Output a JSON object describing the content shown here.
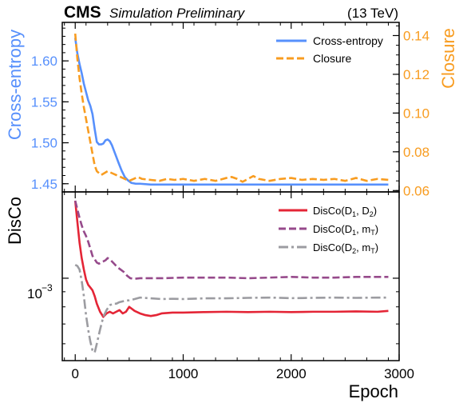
{
  "header": {
    "experiment": "CMS",
    "status": "Simulation Preliminary",
    "energy": "(13 TeV)"
  },
  "colors": {
    "cross_entropy": "#5790fc",
    "closure": "#f89c20",
    "disco_d1_d2": "#e42536",
    "disco_d1_mt": "#964a8b",
    "disco_d2_mt": "#9c9ca1",
    "axis": "#000000"
  },
  "chart_data": [
    {
      "panel": "top",
      "type": "line",
      "xlim": [
        -120,
        3000
      ],
      "xlabel": "",
      "ylabel_left": "Cross-entropy",
      "ylabel_right": "Closure",
      "ylim_left": [
        1.44,
        1.647
      ],
      "ylim_right": [
        0.0593,
        0.1468
      ],
      "yticks_left": [
        "1.45",
        "1.50",
        "1.55",
        "1.60"
      ],
      "yticks_left_values": [
        1.45,
        1.5,
        1.55,
        1.6
      ],
      "yticks_right": [
        "0.06",
        "0.08",
        "0.10",
        "0.12",
        "0.14"
      ],
      "yticks_right_values": [
        0.06,
        0.08,
        0.1,
        0.12,
        0.14
      ],
      "legend_position": "top-right",
      "series": [
        {
          "name": "Cross-entropy",
          "axis": "left",
          "style": "solid",
          "color_key": "cross_entropy",
          "x": [
            0,
            20,
            40,
            60,
            80,
            100,
            120,
            140,
            160,
            180,
            200,
            220,
            240,
            260,
            280,
            300,
            320,
            340,
            360,
            380,
            400,
            430,
            460,
            490,
            520,
            560,
            600,
            700,
            800,
            1000,
            1200,
            1400,
            1600,
            1800,
            2000,
            2200,
            2400,
            2600,
            2800,
            2900
          ],
          "y": [
            1.628,
            1.609,
            1.596,
            1.585,
            1.572,
            1.562,
            1.552,
            1.545,
            1.535,
            1.517,
            1.501,
            1.498,
            1.498,
            1.499,
            1.503,
            1.504,
            1.502,
            1.497,
            1.49,
            1.483,
            1.476,
            1.466,
            1.458,
            1.454,
            1.451,
            1.45,
            1.45,
            1.449,
            1.449,
            1.449,
            1.449,
            1.449,
            1.449,
            1.449,
            1.449,
            1.449,
            1.449,
            1.449,
            1.449,
            1.449
          ]
        },
        {
          "name": "Closure",
          "axis": "right",
          "style": "dashed",
          "color_key": "closure",
          "x": [
            0,
            20,
            40,
            60,
            80,
            100,
            120,
            140,
            160,
            180,
            200,
            220,
            240,
            270,
            300,
            340,
            380,
            420,
            460,
            500,
            540,
            580,
            620,
            700,
            780,
            850,
            920,
            1000,
            1100,
            1200,
            1300,
            1400,
            1450,
            1500,
            1550,
            1600,
            1650,
            1700,
            1800,
            1900,
            2000,
            2100,
            2200,
            2300,
            2400,
            2500,
            2600,
            2700,
            2800,
            2900
          ],
          "y": [
            0.141,
            0.128,
            0.118,
            0.11,
            0.103,
            0.097,
            0.091,
            0.085,
            0.079,
            0.073,
            0.07,
            0.069,
            0.068,
            0.069,
            0.07,
            0.069,
            0.068,
            0.067,
            0.066,
            0.065,
            0.066,
            0.067,
            0.066,
            0.0655,
            0.065,
            0.066,
            0.0655,
            0.066,
            0.065,
            0.066,
            0.065,
            0.0665,
            0.067,
            0.066,
            0.0645,
            0.066,
            0.0675,
            0.066,
            0.065,
            0.066,
            0.0665,
            0.0655,
            0.066,
            0.0655,
            0.066,
            0.065,
            0.0665,
            0.065,
            0.066,
            0.0655
          ]
        }
      ]
    },
    {
      "panel": "bottom",
      "type": "line",
      "xlim": [
        -120,
        3000
      ],
      "xlabel": "Epoch",
      "ylabel": "DisCo",
      "yscale": "log",
      "ylim": [
        0.000526,
        0.00196
      ],
      "xticks": [
        "0",
        "1000",
        "2000",
        "3000"
      ],
      "xticks_values": [
        0,
        1000,
        2000,
        3000
      ],
      "yticks_major_label": "10",
      "yticks_major_exponent": "−3",
      "ytick_major_value": 0.001,
      "legend_position": "top-right",
      "series": [
        {
          "name": "DisCo(D1, D2)",
          "legend_main": "DisCo(D",
          "legend_sub1": "1",
          "legend_mid": ", D",
          "legend_sub2": "2",
          "legend_end": ")",
          "style": "solid",
          "color_key": "disco_d1_d2",
          "x": [
            0,
            20,
            40,
            60,
            80,
            100,
            120,
            140,
            160,
            180,
            200,
            230,
            260,
            290,
            320,
            350,
            380,
            410,
            440,
            470,
            500,
            550,
            600,
            650,
            700,
            750,
            800,
            900,
            1000,
            1200,
            1400,
            1600,
            1800,
            2000,
            2200,
            2400,
            2600,
            2800,
            2900
          ],
          "y": [
            0.00183,
            0.00155,
            0.00132,
            0.00117,
            0.00107,
            0.00099,
            0.00095,
            0.00093,
            0.00091,
            0.00087,
            0.00082,
            0.00077,
            0.00074,
            0.00076,
            0.00077,
            0.00076,
            0.00077,
            0.00078,
            0.00076,
            0.00077,
            0.0008,
            0.000775,
            0.00076,
            0.00075,
            0.000745,
            0.00075,
            0.00076,
            0.000765,
            0.000765,
            0.000768,
            0.00077,
            0.000768,
            0.00077,
            0.000768,
            0.00077,
            0.00077,
            0.000772,
            0.00077,
            0.000775
          ]
        },
        {
          "name": "DisCo(D1, mT)",
          "legend_main": "DisCo(D",
          "legend_sub1": "1",
          "legend_mid": ", m",
          "legend_sub2": "T",
          "legend_end": ")",
          "style": "dashed",
          "color_key": "disco_d1_mt",
          "x": [
            0,
            20,
            40,
            60,
            80,
            100,
            120,
            140,
            160,
            180,
            200,
            220,
            240,
            260,
            280,
            300,
            330,
            360,
            390,
            420,
            450,
            480,
            510,
            540,
            600,
            700,
            800,
            1000,
            1200,
            1400,
            1600,
            1800,
            2000,
            2200,
            2400,
            2600,
            2800,
            2900
          ],
          "y": [
            0.00183,
            0.00171,
            0.0016,
            0.00151,
            0.00144,
            0.00139,
            0.00133,
            0.00126,
            0.00119,
            0.00116,
            0.00113,
            0.00112,
            0.00113,
            0.00114,
            0.00115,
            0.00117,
            0.00115,
            0.00112,
            0.00109,
            0.00107,
            0.00105,
            0.00102,
            0.001,
            0.000995,
            0.001,
            0.001,
            0.001,
            0.001005,
            0.001005,
            0.001005,
            0.001,
            0.001005,
            0.00101,
            0.001005,
            0.001005,
            0.00101,
            0.00101,
            0.00101
          ]
        },
        {
          "name": "DisCo(D2, mT)",
          "legend_main": "DisCo(D",
          "legend_sub1": "2",
          "legend_mid": ", m",
          "legend_sub2": "T",
          "legend_end": ")",
          "style": "dashdot",
          "color_key": "disco_d2_mt",
          "x": [
            0,
            20,
            40,
            60,
            80,
            100,
            120,
            140,
            160,
            180,
            200,
            230,
            260,
            290,
            320,
            350,
            380,
            410,
            440,
            470,
            500,
            550,
            600,
            700,
            800,
            900,
            1000,
            1200,
            1400,
            1600,
            1800,
            2000,
            2200,
            2400,
            2600,
            2800,
            2900
          ],
          "y": [
            0.00111,
            0.0011,
            0.00107,
            0.00098,
            0.00087,
            0.00075,
            0.00067,
            0.00061,
            0.00057,
            0.00056,
            0.0006,
            0.00067,
            0.00074,
            0.00078,
            0.00081,
            0.00082,
            0.00082,
            0.00083,
            0.000835,
            0.00084,
            0.000842,
            0.00085,
            0.00086,
            0.000855,
            0.00085,
            0.000852,
            0.00085,
            0.000855,
            0.000855,
            0.000858,
            0.00086,
            0.000856,
            0.000858,
            0.00086,
            0.000858,
            0.00086,
            0.00086
          ]
        }
      ]
    }
  ]
}
